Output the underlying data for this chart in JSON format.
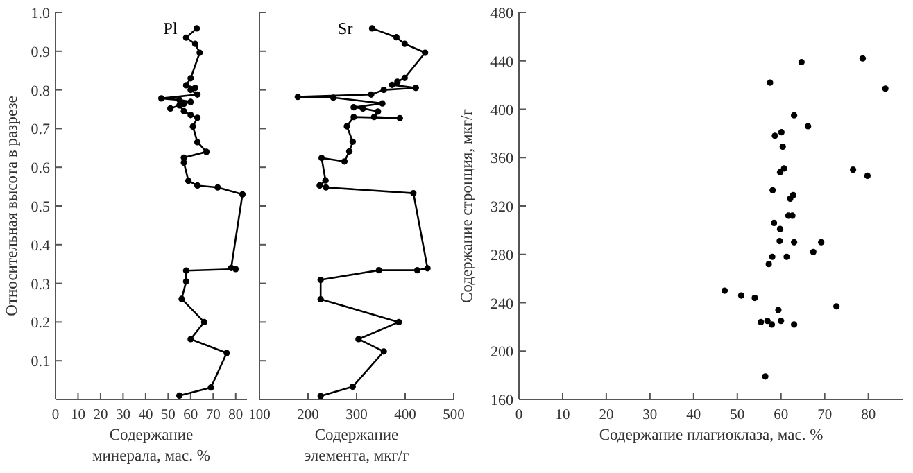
{
  "chart_data": [
    {
      "type": "line",
      "ylabel": "Относительная высота в разрезе",
      "xlabel": "Содержание\nминерала, мас. %",
      "xlim": [
        0,
        85
      ],
      "ylim": [
        0,
        1
      ],
      "xticks": [
        0,
        10,
        20,
        30,
        40,
        50,
        60,
        70,
        80
      ],
      "yticks": [
        0.1,
        0.2,
        0.3,
        0.4,
        0.5,
        0.6,
        0.7,
        0.8,
        0.9,
        {
          "value": 1,
          "label": "1.0"
        }
      ],
      "marker": "circle",
      "series": [
        {
          "name": "Pl",
          "color": "#000000",
          "x": [
            62.7,
            58,
            62,
            64,
            60,
            58,
            62,
            60,
            63,
            47,
            55,
            60,
            57,
            51,
            55,
            57,
            60,
            63,
            61,
            63,
            67,
            57,
            57,
            59,
            63,
            72,
            83,
            78,
            80,
            58,
            58,
            56,
            66,
            60,
            76,
            69,
            55
          ],
          "values": [
            0.959,
            0.935,
            0.919,
            0.896,
            0.83,
            0.812,
            0.805,
            0.8,
            0.788,
            0.778,
            0.774,
            0.769,
            0.764,
            0.752,
            0.76,
            0.745,
            0.735,
            0.728,
            0.705,
            0.665,
            0.64,
            0.625,
            0.612,
            0.565,
            0.553,
            0.548,
            0.53,
            0.34,
            0.337,
            0.333,
            0.305,
            0.26,
            0.2,
            0.156,
            0.12,
            0.031,
            0.01
          ]
        }
      ]
    },
    {
      "type": "line",
      "xlabel": "Содержание\nэлемента, мкг/г",
      "xlim": [
        100,
        500
      ],
      "ylim": [
        0,
        1
      ],
      "xticks": [
        100,
        200,
        300,
        400,
        500
      ],
      "yticks": [
        0.1,
        0.2,
        0.3,
        0.4,
        0.5,
        0.6,
        0.7,
        0.8,
        0.9,
        1
      ],
      "tick_labels": "x",
      "marker": "circle",
      "series": [
        {
          "name": "Sr",
          "color": "#000000",
          "x": [
            332,
            382,
            399,
            441,
            399,
            384,
            373,
            422,
            356,
            330,
            179,
            252,
            353,
            294,
            313,
            344,
            336,
            389,
            294,
            280,
            292,
            285,
            275,
            228,
            236,
            224,
            237,
            417,
            446,
            425,
            346,
            226,
            226,
            387,
            304,
            356,
            292,
            226
          ],
          "values": [
            0.959,
            0.936,
            0.919,
            0.896,
            0.831,
            0.821,
            0.813,
            0.805,
            0.8,
            0.788,
            0.782,
            0.78,
            0.765,
            0.755,
            0.752,
            0.744,
            0.73,
            0.727,
            0.73,
            0.706,
            0.666,
            0.641,
            0.615,
            0.624,
            0.566,
            0.553,
            0.548,
            0.533,
            0.339,
            0.334,
            0.334,
            0.309,
            0.259,
            0.2,
            0.156,
            0.124,
            0.033,
            0.009
          ]
        }
      ]
    },
    {
      "type": "scatter",
      "xlabel": "Содержание плагиоклаза, мас. %",
      "ylabel": "Содержание стронция, мкг/г",
      "xlim": [
        0,
        88
      ],
      "ylim": [
        160,
        480
      ],
      "xticks": [
        0,
        10,
        20,
        30,
        40,
        50,
        60,
        70,
        80
      ],
      "yticks": [
        160,
        200,
        240,
        280,
        320,
        360,
        400,
        440,
        480
      ],
      "marker": "circle",
      "series": [
        {
          "color": "#000000",
          "x": [
            64.7,
            78.7,
            57.5,
            83.9,
            63,
            66.2,
            58.6,
            60.1,
            60.4,
            60.7,
            59.8,
            76.5,
            79.8,
            58.1,
            62.8,
            62.1,
            61.7,
            62.6,
            58.4,
            59.8,
            59.7,
            63,
            69.2,
            58,
            61.3,
            57.2,
            67.4,
            47.1,
            50.9,
            54,
            72.7,
            59.4,
            55.4,
            56.9,
            60,
            57.9,
            63,
            56.4
          ],
          "values": [
            439,
            442,
            422,
            417,
            395,
            386,
            378,
            381,
            369,
            351,
            348,
            350,
            345,
            333,
            329,
            326,
            312,
            312,
            306,
            301,
            291,
            290,
            290,
            278,
            278,
            272,
            282,
            250,
            246,
            244,
            237,
            234,
            224,
            225,
            225,
            222,
            222,
            179
          ]
        }
      ]
    }
  ]
}
